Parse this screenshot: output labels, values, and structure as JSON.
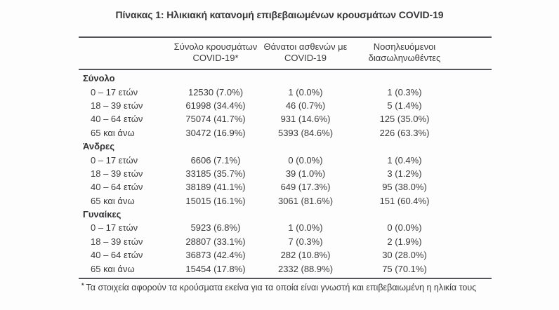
{
  "title": "Πίνακας 1: Ηλικιακή κατανομή επιβεβαιωμένων κρουσμάτων COVID-19",
  "table": {
    "columns": [
      {
        "line1": "Σύνολο κρουσμάτων",
        "line2": "COVID-19*"
      },
      {
        "line1": "Θάνατοι ασθενών με",
        "line2": "COVID-19"
      },
      {
        "line1": "Νοσηλευόμενοι",
        "line2": "διασωληνωθέντες"
      }
    ],
    "groups": [
      {
        "label": "Σύνολο",
        "rows": [
          {
            "age": "0 – 17 ετών",
            "cases": "12530 (7.0%)",
            "deaths": "1 (0.0%)",
            "intubated": "1 (0.3%)"
          },
          {
            "age": "18 – 39 ετών",
            "cases": "61998 (34.4%)",
            "deaths": "46 (0.7%)",
            "intubated": "5 (1.4%)"
          },
          {
            "age": "40 – 64 ετών",
            "cases": "75074 (41.7%)",
            "deaths": "931 (14.6%)",
            "intubated": "125 (35.0%)"
          },
          {
            "age": "65 και άνω",
            "cases": "30472 (16.9%)",
            "deaths": "5393 (84.6%)",
            "intubated": "226 (63.3%)"
          }
        ]
      },
      {
        "label": "Άνδρες",
        "rows": [
          {
            "age": "0 – 17 ετών",
            "cases": "6606 (7.1%)",
            "deaths": "0 (0.0%)",
            "intubated": "1 (0.4%)"
          },
          {
            "age": "18 – 39 ετών",
            "cases": "33185 (35.7%)",
            "deaths": "39 (1.0%)",
            "intubated": "3 (1.2%)"
          },
          {
            "age": "40 – 64 ετών",
            "cases": "38189 (41.1%)",
            "deaths": "649 (17.3%)",
            "intubated": "95 (38.0%)"
          },
          {
            "age": "65 και άνω",
            "cases": "15015 (16.1%)",
            "deaths": "3061 (81.6%)",
            "intubated": "151 (60.4%)"
          }
        ]
      },
      {
        "label": "Γυναίκες",
        "rows": [
          {
            "age": "0 – 17 ετών",
            "cases": "5923 (6.8%)",
            "deaths": "1 (0.0%)",
            "intubated": "0 (0.0%)"
          },
          {
            "age": "18 – 39 ετών",
            "cases": "28807 (33.1%)",
            "deaths": "7 (0.3%)",
            "intubated": "2 (1.9%)"
          },
          {
            "age": "40 – 64 ετών",
            "cases": "36873 (42.4%)",
            "deaths": "282 (10.8%)",
            "intubated": "30 (28.0%)"
          },
          {
            "age": "65 και άνω",
            "cases": "15454 (17.8%)",
            "deaths": "2332 (88.9%)",
            "intubated": "75 (70.1%)"
          }
        ]
      }
    ],
    "footnote_marker": "*",
    "footnote": "Τα στοιχεία αφορούν τα κρούσματα εκείνα για τα οποία είναι γνωστή και επιβεβαιωμένη η ηλικία τους"
  },
  "colors": {
    "text": "#3b3b3d",
    "rule": "#56565a",
    "background": "#fdfdfd"
  }
}
